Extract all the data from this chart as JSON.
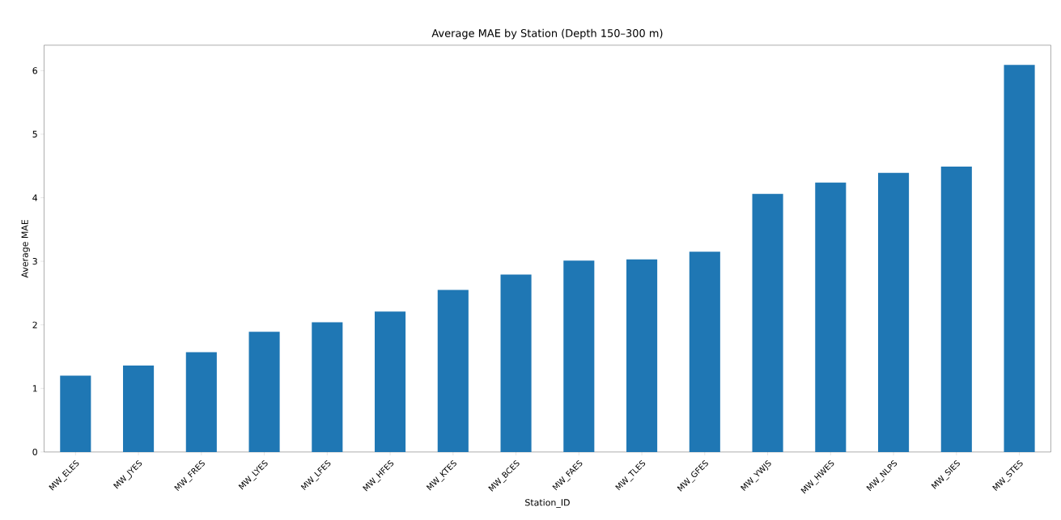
{
  "chart_data": {
    "type": "bar",
    "title": "Average MAE by Station (Depth 150–300 m)",
    "xlabel": "Station_ID",
    "ylabel": "Average MAE",
    "categories": [
      "MW_ELES",
      "MW_JYES",
      "MW_FRES",
      "MW_LYES",
      "MW_LFES",
      "MW_HFES",
      "MW_KTES",
      "MW_BCES",
      "MW_FAES",
      "MW_TLES",
      "MW_GFES",
      "MW_YWJS",
      "MW_HWES",
      "MW_NLPS",
      "MW_SIES",
      "MW_STES"
    ],
    "values": [
      1.2,
      1.36,
      1.57,
      1.89,
      2.04,
      2.21,
      2.55,
      2.79,
      3.01,
      3.03,
      3.15,
      4.06,
      4.24,
      4.39,
      4.49,
      6.09
    ],
    "color": "#1f77b4",
    "ylim": [
      0,
      6.4
    ],
    "yticks": [
      0,
      1,
      2,
      3,
      4,
      5,
      6
    ]
  }
}
